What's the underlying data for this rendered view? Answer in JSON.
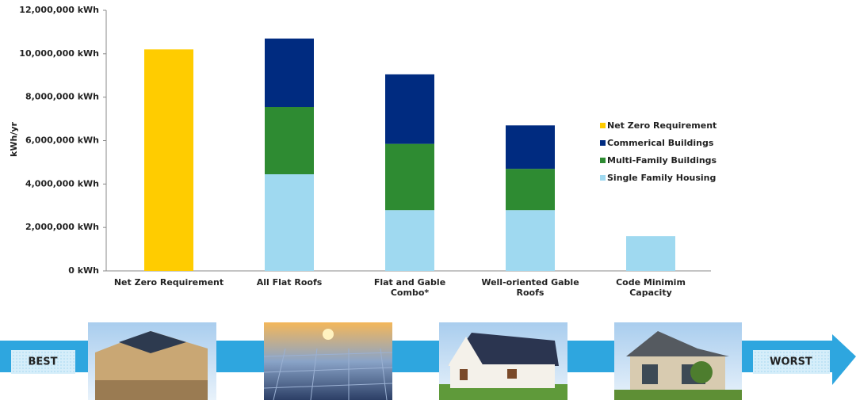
{
  "chart_data": {
    "type": "stacked_bar",
    "ylabel": "kWh/yr",
    "categories": [
      "Net Zero Requirement",
      "All Flat Roofs",
      "Flat and Gable Combo*",
      "Well-oriented Gable Roofs",
      "Code Minimim Capacity"
    ],
    "series": [
      {
        "name": "Net Zero Requirement",
        "color": "#ffcc00",
        "values": [
          10200000,
          null,
          null,
          null,
          null
        ]
      },
      {
        "name": "Commerical Buildings",
        "color": "#002b80",
        "values": [
          null,
          3150000,
          3200000,
          2000000,
          null
        ]
      },
      {
        "name": "Multi-Family Buildings",
        "color": "#2e8b32",
        "values": [
          null,
          3100000,
          3050000,
          1900000,
          null
        ]
      },
      {
        "name": "Single Family Housing",
        "color": "#9fd9f0",
        "values": [
          null,
          4450000,
          2800000,
          2800000,
          1600000
        ]
      }
    ],
    "ylim": [
      0,
      12000000
    ],
    "yticks": [
      {
        "value": 0,
        "label": "0 kWh"
      },
      {
        "value": 2000000,
        "label": "2,000,000 kWh"
      },
      {
        "value": 4000000,
        "label": "4,000,000 kWh"
      },
      {
        "value": 6000000,
        "label": "6,000,000 kWh"
      },
      {
        "value": 8000000,
        "label": "8,000,000 kWh"
      },
      {
        "value": 10000000,
        "label": "10,000,000 kWh"
      },
      {
        "value": 12000000,
        "label": "12,000,000 kWh"
      }
    ],
    "grid": false,
    "legend": "right"
  },
  "scale_labels": {
    "best": "BEST",
    "worst": "WORST"
  }
}
